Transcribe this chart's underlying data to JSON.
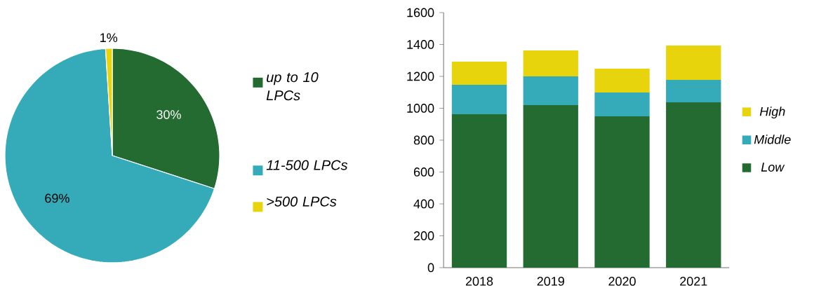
{
  "chart_data": [
    {
      "type": "pie",
      "categories": [
        "up to 10 LPCs",
        "11-500 LPCs",
        ">500 LPCs"
      ],
      "values": [
        30,
        69,
        1
      ],
      "colors": [
        "#236b30",
        "#35abb9",
        "#e8d40c"
      ],
      "value_labels": [
        "30%",
        "69%",
        "1%"
      ],
      "legend": "right"
    },
    {
      "type": "bar",
      "stacked": true,
      "categories": [
        "2018",
        "2019",
        "2020",
        "2021"
      ],
      "series": [
        {
          "name": "Low",
          "color": "#236b30",
          "values": [
            963,
            1020,
            949,
            1037
          ]
        },
        {
          "name": "Middle",
          "color": "#35abb9",
          "values": [
            184,
            180,
            150,
            141
          ]
        },
        {
          "name": "High",
          "color": "#e8d40c",
          "values": [
            145,
            163,
            149,
            215
          ]
        }
      ],
      "ylim": [
        0,
        1600
      ],
      "yticks": [
        0,
        200,
        400,
        600,
        800,
        1000,
        1200,
        1400,
        1600
      ],
      "grid": false,
      "legend": "right"
    }
  ]
}
